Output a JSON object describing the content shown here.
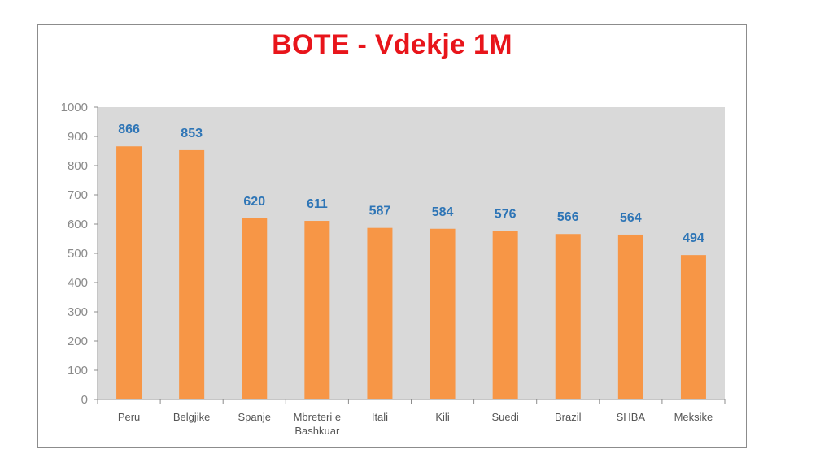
{
  "chart_data": {
    "type": "bar",
    "title": "BOTE - Vdekje 1M",
    "categories": [
      "Peru",
      "Belgjike",
      "Spanje",
      "Mbreteri e Bashkuar",
      "Itali",
      "Kili",
      "Suedi",
      "Brazil",
      "SHBA",
      "Meksike"
    ],
    "category_lines": [
      [
        "Peru"
      ],
      [
        "Belgjike"
      ],
      [
        "Spanje"
      ],
      [
        "Mbreteri e",
        "Bashkuar"
      ],
      [
        "Itali"
      ],
      [
        "Kili"
      ],
      [
        "Suedi"
      ],
      [
        "Brazil"
      ],
      [
        "SHBA"
      ],
      [
        "Meksike"
      ]
    ],
    "values": [
      866,
      853,
      620,
      611,
      587,
      584,
      576,
      566,
      564,
      494
    ],
    "ylim": [
      0,
      1000
    ],
    "yticks": [
      0,
      100,
      200,
      300,
      400,
      500,
      600,
      700,
      800,
      900,
      1000
    ],
    "xlabel": "",
    "ylabel": "",
    "data_labels": true,
    "grid": false,
    "legend": "none",
    "colors": {
      "bar": "#f79646",
      "plot_background": "#d9d9d9",
      "title": "#e8151b",
      "data_label": "#2e75b6",
      "axis": "#8c8c8c"
    }
  }
}
